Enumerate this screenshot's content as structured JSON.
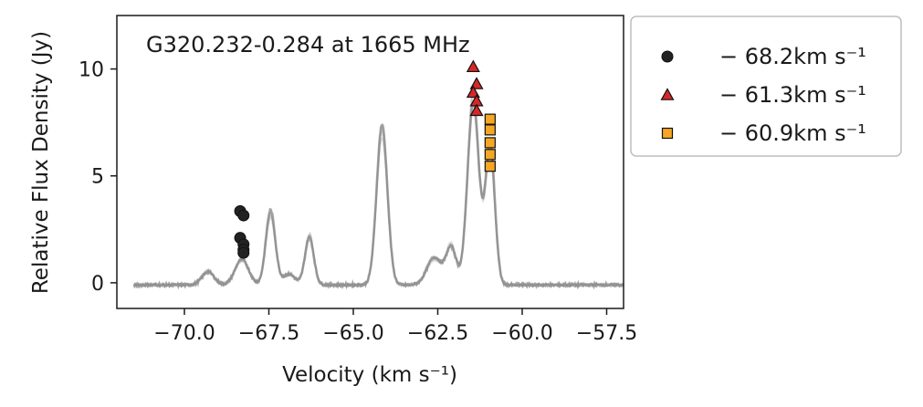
{
  "chart_data": {
    "type": "scatter",
    "title": "G320.232-0.284 at 1665 MHz",
    "xlabel": "Velocity (km s⁻¹)",
    "ylabel": "Relative Flux Density (Jy)",
    "xlim": [
      -72.0,
      -57.0
    ],
    "ylim": [
      -1.2,
      12.5
    ],
    "xticks": [
      -70.0,
      -67.5,
      -65.0,
      -62.5,
      -60.0,
      -57.5
    ],
    "xtick_labels": [
      "−70.0",
      "−67.5",
      "−65.0",
      "−62.5",
      "−60.0",
      "−57.5"
    ],
    "yticks": [
      0,
      5,
      10
    ],
    "ytick_labels": [
      "0",
      "5",
      "10"
    ],
    "grid": false,
    "legend_position": "outside-right",
    "spectrum": {
      "color": "#8a8a8a",
      "x_range": [
        -71.5,
        -57.0
      ],
      "baseline": -0.1,
      "peaks": [
        {
          "center": -69.3,
          "amplitude": 0.6,
          "width": 0.18
        },
        {
          "center": -68.3,
          "amplitude": 1.2,
          "width": 0.2
        },
        {
          "center": -67.45,
          "amplitude": 3.5,
          "width": 0.14
        },
        {
          "center": -66.9,
          "amplitude": 0.5,
          "width": 0.18
        },
        {
          "center": -66.3,
          "amplitude": 2.2,
          "width": 0.13
        },
        {
          "center": -64.15,
          "amplitude": 7.5,
          "width": 0.16
        },
        {
          "center": -62.6,
          "amplitude": 1.3,
          "width": 0.22
        },
        {
          "center": -62.1,
          "amplitude": 1.7,
          "width": 0.15
        },
        {
          "center": -61.45,
          "amplitude": 8.5,
          "width": 0.17
        },
        {
          "center": -60.95,
          "amplitude": 6.6,
          "width": 0.14
        }
      ]
    },
    "series": [
      {
        "name": "− 68.2km s⁻¹",
        "marker": "circle",
        "color": "#222222",
        "points": [
          {
            "x": -68.35,
            "y": 3.35
          },
          {
            "x": -68.25,
            "y": 3.15
          },
          {
            "x": -68.35,
            "y": 2.1
          },
          {
            "x": -68.25,
            "y": 1.8
          },
          {
            "x": -68.25,
            "y": 1.55
          },
          {
            "x": -68.25,
            "y": 1.4
          }
        ]
      },
      {
        "name": "− 61.3km s⁻¹",
        "marker": "triangle",
        "color": "#d62728",
        "points": [
          {
            "x": -61.45,
            "y": 10.1
          },
          {
            "x": -61.35,
            "y": 9.3
          },
          {
            "x": -61.45,
            "y": 8.9
          },
          {
            "x": -61.35,
            "y": 8.5
          },
          {
            "x": -61.35,
            "y": 8.05
          }
        ]
      },
      {
        "name": "− 60.9km s⁻¹",
        "marker": "square",
        "color": "#f5a623",
        "points": [
          {
            "x": -60.95,
            "y": 7.65
          },
          {
            "x": -60.95,
            "y": 7.15
          },
          {
            "x": -60.95,
            "y": 6.55
          },
          {
            "x": -60.95,
            "y": 6.0
          },
          {
            "x": -60.95,
            "y": 5.45
          }
        ]
      }
    ]
  }
}
